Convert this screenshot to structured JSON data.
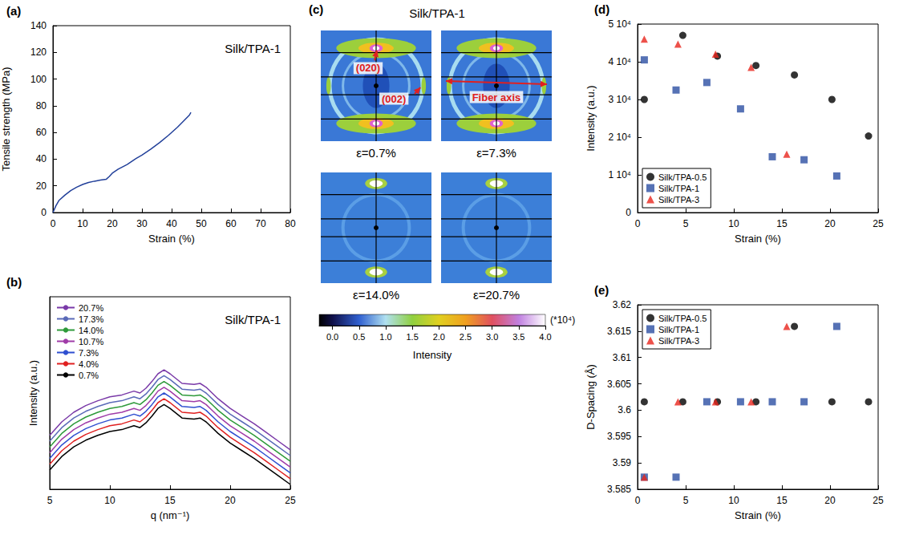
{
  "chart_data": [
    {
      "type": "line",
      "panel": "(a)",
      "annotation": "Silk/TPA-1",
      "x_label": "Strain (%)",
      "y_label": "Tensile strength (MPa)",
      "x": [
        0,
        1,
        2,
        4,
        6,
        8,
        10,
        12,
        14,
        16,
        18,
        19,
        20,
        22,
        25,
        28,
        30,
        33,
        36,
        39,
        42,
        44,
        46,
        46.5
      ],
      "values": [
        0,
        5,
        9,
        13,
        16.5,
        19,
        21,
        22.5,
        23.5,
        24.3,
        25,
        27,
        29.5,
        32.5,
        36,
        40.5,
        43,
        47.5,
        52.5,
        58,
        64,
        68.5,
        73,
        75
      ],
      "color": "#22409a",
      "xlim": [
        0,
        80
      ],
      "xticks": [
        0,
        10,
        20,
        30,
        40,
        50,
        60,
        70,
        80
      ],
      "ylim": [
        0,
        140
      ],
      "yticks": [
        0,
        20,
        40,
        60,
        80,
        100,
        120,
        140
      ]
    },
    {
      "type": "line",
      "panel": "(b)",
      "annotation": "Silk/TPA-1",
      "x_label": "q (nm⁻¹)",
      "y_label": "Intensity (a.u.)",
      "x": [
        5,
        6,
        7,
        8,
        9,
        10,
        11,
        12,
        12.5,
        13,
        13.5,
        14,
        14.5,
        15,
        16,
        17,
        17.5,
        18,
        19,
        20,
        21,
        22,
        23,
        24,
        25
      ],
      "series": [
        {
          "name": "20.7%",
          "color": "#7a3aa8",
          "values": [
            2.8,
            3.5,
            4.0,
            4.35,
            4.6,
            4.8,
            4.9,
            5.1,
            5.0,
            5.25,
            5.6,
            6.0,
            6.2,
            6.0,
            5.5,
            5.45,
            5.5,
            5.3,
            4.7,
            4.2,
            3.8,
            3.4,
            2.95,
            2.5,
            2.05
          ]
        },
        {
          "name": "17.3%",
          "color": "#5a6ab8",
          "values": [
            2.5,
            3.2,
            3.7,
            4.05,
            4.3,
            4.5,
            4.6,
            4.8,
            4.7,
            4.95,
            5.3,
            5.7,
            5.9,
            5.7,
            5.2,
            5.15,
            5.2,
            5.0,
            4.4,
            3.9,
            3.5,
            3.1,
            2.65,
            2.2,
            1.75
          ]
        },
        {
          "name": "14.0%",
          "color": "#2e9a3a",
          "values": [
            2.2,
            2.9,
            3.4,
            3.75,
            4.0,
            4.2,
            4.3,
            4.5,
            4.4,
            4.65,
            5.0,
            5.4,
            5.6,
            5.4,
            4.9,
            4.85,
            4.9,
            4.7,
            4.1,
            3.6,
            3.2,
            2.8,
            2.35,
            1.9,
            1.45
          ]
        },
        {
          "name": "10.7%",
          "color": "#a03ca8",
          "values": [
            1.9,
            2.6,
            3.1,
            3.45,
            3.7,
            3.9,
            4.0,
            4.2,
            4.1,
            4.35,
            4.7,
            5.1,
            5.3,
            5.1,
            4.6,
            4.55,
            4.6,
            4.4,
            3.8,
            3.3,
            2.9,
            2.5,
            2.05,
            1.6,
            1.15
          ]
        },
        {
          "name": "7.3%",
          "color": "#2f4fd0",
          "values": [
            1.6,
            2.3,
            2.8,
            3.15,
            3.4,
            3.6,
            3.7,
            3.9,
            3.8,
            4.05,
            4.4,
            4.8,
            5.0,
            4.8,
            4.3,
            4.25,
            4.3,
            4.1,
            3.5,
            3.0,
            2.6,
            2.2,
            1.75,
            1.3,
            0.85
          ]
        },
        {
          "name": "4.0%",
          "color": "#e02020",
          "values": [
            1.3,
            2.0,
            2.5,
            2.85,
            3.1,
            3.3,
            3.4,
            3.6,
            3.5,
            3.75,
            4.1,
            4.5,
            4.7,
            4.5,
            4.0,
            3.95,
            4.0,
            3.8,
            3.2,
            2.7,
            2.3,
            1.9,
            1.45,
            1.0,
            0.55
          ]
        },
        {
          "name": "0.7%",
          "color": "#000000",
          "values": [
            1.0,
            1.7,
            2.2,
            2.55,
            2.8,
            3.0,
            3.1,
            3.3,
            3.2,
            3.45,
            3.8,
            4.2,
            4.4,
            4.2,
            3.7,
            3.65,
            3.7,
            3.5,
            2.9,
            2.4,
            2.0,
            1.6,
            1.15,
            0.7,
            0.25
          ]
        }
      ],
      "xlim": [
        5,
        25
      ],
      "xticks": [
        5,
        10,
        15,
        20,
        25
      ],
      "ylim": [
        0,
        10
      ],
      "tick_labels": "x",
      "legend": "top-left"
    },
    {
      "type": "image",
      "panel": "(c)",
      "title": "Silk/TPA-1",
      "images": [
        "ε=0.7%",
        "ε=7.3%",
        "ε=14.0%",
        "ε=20.7%"
      ],
      "annotations": [
        "(020)",
        "(002)",
        "Fiber axis"
      ],
      "colorbar": {
        "label": "Intensity",
        "multiplier": "(*10⁴)",
        "range": [
          -0.25,
          4
        ],
        "ticks": [
          {
            "value": 0,
            "label": "0.0"
          },
          0.5,
          {
            "value": 1,
            "label": "1.0"
          },
          1.5,
          {
            "value": 2,
            "label": "2.0"
          },
          2.5,
          {
            "value": 3,
            "label": "3.0"
          },
          3.5,
          {
            "value": 4,
            "label": "4.0"
          }
        ]
      }
    },
    {
      "type": "scatter",
      "panel": "(d)",
      "x_label": "Strain (%)",
      "y_label": "Intensity (a.u.)",
      "series": [
        {
          "name": "Silk/TPA-0.5",
          "color": "#000000",
          "marker": "circle",
          "x": [
            0.7,
            4.7,
            8.3,
            12.3,
            16.3,
            20.2,
            24
          ],
          "values": [
            30000,
            47000,
            41500,
            39000,
            36500,
            30000,
            20300
          ]
        },
        {
          "name": "Silk/TPA-1",
          "color": "#2c4fa3",
          "marker": "square",
          "x": [
            0.7,
            4,
            7.2,
            10.7,
            14,
            17.3,
            20.7
          ],
          "values": [
            40500,
            32500,
            34500,
            27500,
            14800,
            14000,
            9700
          ]
        },
        {
          "name": "Silk/TPA-3",
          "color": "#e8251d",
          "marker": "triangle",
          "x": [
            0.7,
            4.2,
            8.1,
            11.8,
            15.5
          ],
          "values": [
            46000,
            44700,
            42000,
            38500,
            15500
          ]
        }
      ],
      "xlim": [
        0,
        25
      ],
      "xticks": [
        0,
        5,
        10,
        15,
        20,
        25
      ],
      "ylim": [
        0,
        50000
      ],
      "yticks": [
        0,
        {
          "value": 10000,
          "label": "1 10⁴"
        },
        {
          "value": 20000,
          "label": "2 10⁴"
        },
        {
          "value": 30000,
          "label": "3 10⁴"
        },
        {
          "value": 40000,
          "label": "4 10⁴"
        },
        {
          "value": 50000,
          "label": "5 10⁴"
        }
      ],
      "legend": "bottom-left"
    },
    {
      "type": "scatter",
      "panel": "(e)",
      "x_label": "Strain (%)",
      "y_label": "D-Spacing (Å)",
      "series": [
        {
          "name": "Silk/TPA-0.5",
          "color": "#000000",
          "marker": "circle",
          "x": [
            0.7,
            4.7,
            8.3,
            12.3,
            16.3,
            20.2,
            24
          ],
          "values": [
            3.6016,
            3.6016,
            3.6016,
            3.6016,
            3.6159,
            3.6016,
            3.6016
          ]
        },
        {
          "name": "Silk/TPA-1",
          "color": "#2c4fa3",
          "marker": "square",
          "x": [
            0.7,
            4,
            7.2,
            10.7,
            14,
            17.3,
            20.7
          ],
          "values": [
            3.5873,
            3.5873,
            3.6016,
            3.6016,
            3.6016,
            3.6016,
            3.6159
          ]
        },
        {
          "name": "Silk/TPA-3",
          "color": "#e8251d",
          "marker": "triangle",
          "x": [
            0.7,
            4.2,
            8.1,
            11.8,
            15.5
          ],
          "values": [
            3.5873,
            3.6016,
            3.6016,
            3.6016,
            3.6159
          ]
        }
      ],
      "xlim": [
        0,
        25
      ],
      "xticks": [
        0,
        5,
        10,
        15,
        20,
        25
      ],
      "ylim": [
        3.585,
        3.62
      ],
      "yticks": [
        3.585,
        3.59,
        3.595,
        3.6,
        3.605,
        3.61,
        3.615,
        3.62
      ],
      "legend": "top-left"
    }
  ]
}
